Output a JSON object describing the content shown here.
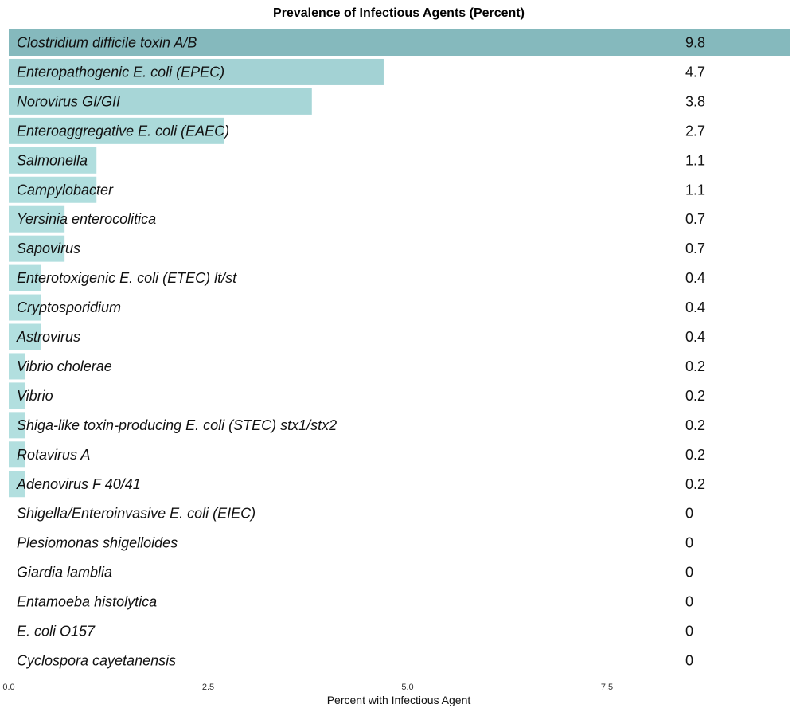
{
  "chart_data": {
    "type": "bar",
    "orientation": "horizontal",
    "title": "Prevalence of Infectious Agents (Percent)",
    "xlabel": "Percent with Infectious Agent",
    "ylabel": "",
    "xlim": [
      0,
      9.8
    ],
    "xticks": [
      0,
      2.5,
      5,
      7.5
    ],
    "xtick_labels": [
      "0.0",
      "2.5",
      "5.0",
      "7.5"
    ],
    "grid": false,
    "legend": "none",
    "categories": [
      "Clostridium difficile toxin A/B",
      "Enteropathogenic E. coli (EPEC)",
      "Norovirus GI/GII",
      "Enteroaggregative E. coli (EAEC)",
      "Salmonella",
      "Campylobacter",
      "Yersinia enterocolitica",
      "Sapovirus",
      "Enterotoxigenic E. coli (ETEC) lt/st",
      "Cryptosporidium",
      "Astrovirus",
      "Vibrio cholerae",
      "Vibrio",
      "Shiga-like toxin-producing E. coli (STEC) stx1/stx2",
      "Rotavirus A",
      "Adenovirus F 40/41",
      "Shigella/Enteroinvasive E. coli (EIEC)",
      "Plesiomonas shigelloides",
      "Giardia lamblia",
      "Entamoeba histolytica",
      "E. coli O157",
      "Cyclospora cayetanensis"
    ],
    "values": [
      9.8,
      4.7,
      3.8,
      2.7,
      1.1,
      1.1,
      0.7,
      0.7,
      0.4,
      0.4,
      0.4,
      0.2,
      0.2,
      0.2,
      0.2,
      0.2,
      0,
      0,
      0,
      0,
      0,
      0
    ],
    "value_labels": [
      "9.8",
      "4.7",
      "3.8",
      "2.7",
      "1.1",
      "1.1",
      "0.7",
      "0.7",
      "0.4",
      "0.4",
      "0.4",
      "0.2",
      "0.2",
      "0.2",
      "0.2",
      "0.2",
      "0",
      "0",
      "0",
      "0",
      "0",
      "0"
    ],
    "colors": {
      "bar_low": "#b2dfdf",
      "bar_high": "#85b9bd",
      "background": "#ffffff"
    }
  }
}
